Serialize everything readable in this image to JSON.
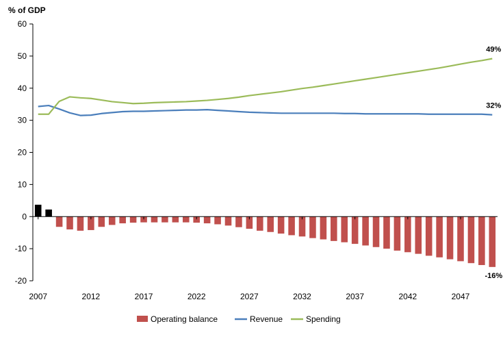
{
  "chart_data": {
    "type": "bar",
    "ylabel": "% of GDP",
    "ylim": [
      -20,
      60
    ],
    "yticks": [
      -20,
      -10,
      0,
      10,
      20,
      30,
      40,
      50,
      60
    ],
    "xticks": [
      2007,
      2012,
      2017,
      2022,
      2027,
      2032,
      2037,
      2042,
      2047
    ],
    "x": [
      2007,
      2008,
      2009,
      2010,
      2011,
      2012,
      2013,
      2014,
      2015,
      2016,
      2017,
      2018,
      2019,
      2020,
      2021,
      2022,
      2023,
      2024,
      2025,
      2026,
      2027,
      2028,
      2029,
      2030,
      2031,
      2032,
      2033,
      2034,
      2035,
      2036,
      2037,
      2038,
      2039,
      2040,
      2041,
      2042,
      2043,
      2044,
      2045,
      2046,
      2047,
      2048,
      2049,
      2050
    ],
    "grid": false,
    "legend_position": "bottom",
    "series": [
      {
        "name": "Operating balance",
        "kind": "bar",
        "color": "#c0504d",
        "highlight_color": "#000000",
        "highlight_years": [
          2007,
          2008
        ],
        "values": [
          3.7,
          2.2,
          -3.2,
          -4.0,
          -4.4,
          -4.2,
          -3.2,
          -2.6,
          -2.1,
          -1.9,
          -1.8,
          -1.8,
          -1.8,
          -1.8,
          -1.8,
          -1.9,
          -2.1,
          -2.4,
          -2.8,
          -3.3,
          -3.8,
          -4.4,
          -4.8,
          -5.3,
          -5.8,
          -6.2,
          -6.7,
          -7.1,
          -7.6,
          -8.0,
          -8.5,
          -9.0,
          -9.5,
          -10.0,
          -10.6,
          -11.1,
          -11.6,
          -12.2,
          -12.7,
          -13.3,
          -13.9,
          -14.5,
          -15.1,
          -15.7
        ]
      },
      {
        "name": "Revenue",
        "kind": "line",
        "color": "#4a7ebb",
        "values": [
          34.3,
          34.6,
          33.5,
          32.3,
          31.5,
          31.6,
          32.1,
          32.4,
          32.7,
          32.8,
          32.8,
          32.9,
          33.0,
          33.1,
          33.2,
          33.2,
          33.3,
          33.1,
          32.9,
          32.7,
          32.5,
          32.4,
          32.3,
          32.2,
          32.2,
          32.2,
          32.2,
          32.2,
          32.2,
          32.1,
          32.1,
          32.0,
          32.0,
          32.0,
          32.0,
          32.0,
          32.0,
          31.9,
          31.9,
          31.9,
          31.9,
          31.9,
          31.9,
          31.7
        ]
      },
      {
        "name": "Spending",
        "kind": "line",
        "color": "#9bbb59",
        "values": [
          31.9,
          31.9,
          35.9,
          37.3,
          37.0,
          36.8,
          36.3,
          35.8,
          35.5,
          35.2,
          35.3,
          35.5,
          35.6,
          35.7,
          35.8,
          36.0,
          36.2,
          36.5,
          36.8,
          37.2,
          37.7,
          38.1,
          38.5,
          38.9,
          39.4,
          39.9,
          40.3,
          40.8,
          41.3,
          41.8,
          42.3,
          42.8,
          43.3,
          43.8,
          44.3,
          44.8,
          45.3,
          45.8,
          46.3,
          46.9,
          47.5,
          48.1,
          48.6,
          49.2
        ]
      }
    ],
    "annotations": [
      {
        "text": "49%",
        "series": "Spending"
      },
      {
        "text": "32%",
        "series": "Revenue"
      },
      {
        "text": "-16%",
        "series": "Operating balance"
      }
    ]
  }
}
